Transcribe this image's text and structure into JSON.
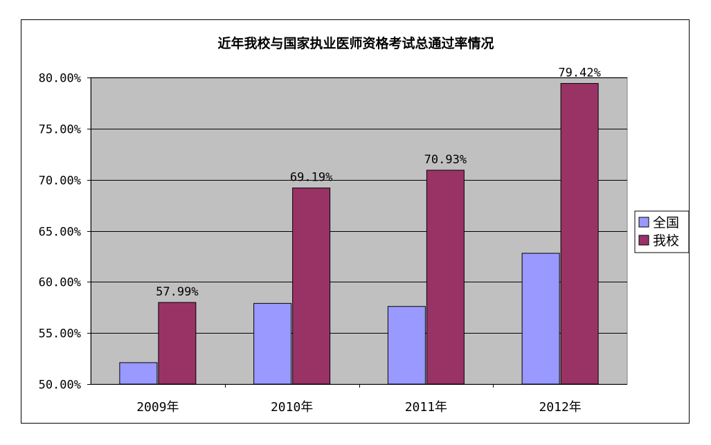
{
  "chart_data": {
    "type": "bar",
    "title": "近年我校与国家执业医师资格考试总通过率情况",
    "xlabel": "",
    "ylabel": "",
    "categories": [
      "2009年",
      "2010年",
      "2011年",
      "2012年"
    ],
    "series": [
      {
        "name": "全国",
        "values": [
          52.1,
          57.9,
          57.6,
          62.8
        ],
        "color": "#9999FF",
        "data_labels": [
          "",
          "",
          "",
          ""
        ]
      },
      {
        "name": "我校",
        "values": [
          57.99,
          69.19,
          70.93,
          79.42
        ],
        "color": "#993366",
        "data_labels": [
          "57.99%",
          "69.19%",
          "70.93%",
          "79.42%"
        ]
      }
    ],
    "ylim": [
      50,
      80
    ],
    "yticks": [
      80,
      75,
      70,
      65,
      60,
      55,
      50
    ],
    "ytick_labels": [
      "80.00%",
      "75.00%",
      "70.00%",
      "65.00%",
      "60.00%",
      "55.00%",
      "50.00%"
    ],
    "grid": true,
    "legend": "right",
    "plot_background": "#C0C0C0"
  }
}
